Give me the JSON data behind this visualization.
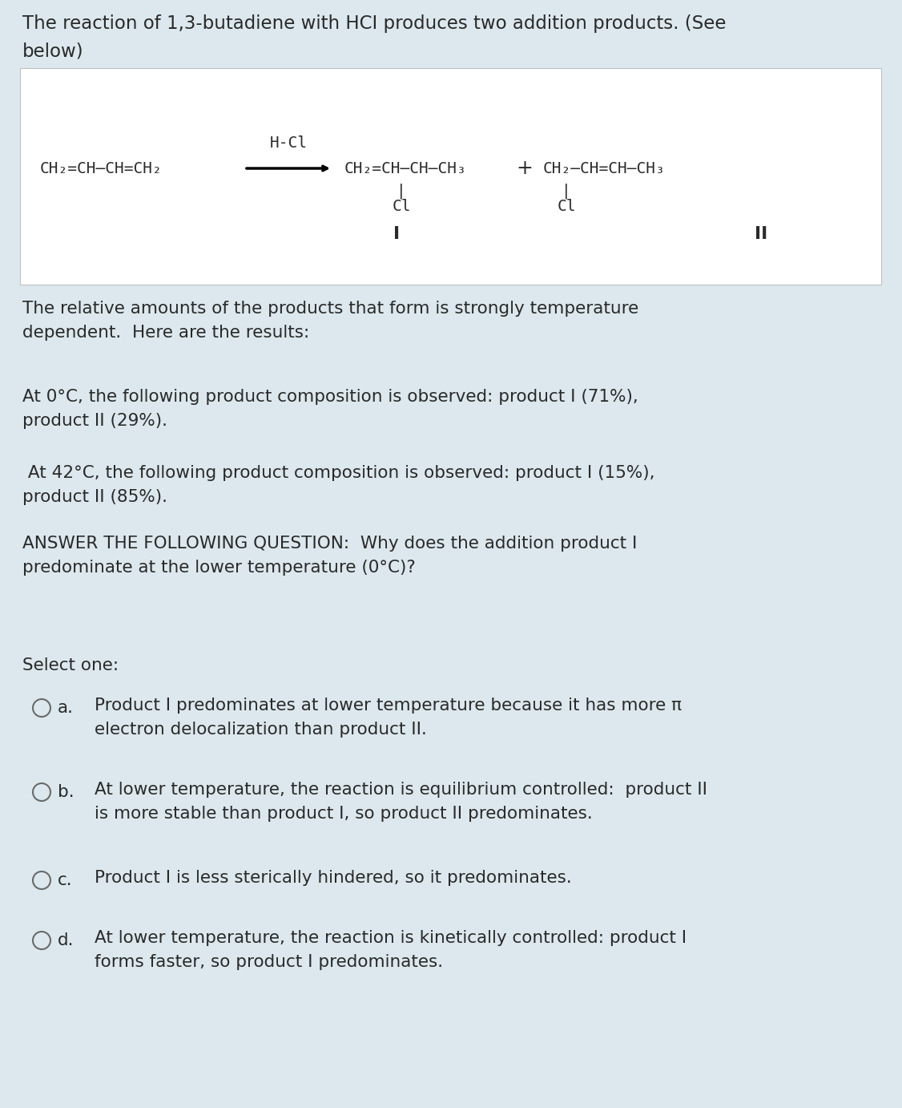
{
  "background_color": "#dce8ed",
  "white_box_color": "#ffffff",
  "text_color": "#2a2a2a",
  "title_text": "The reaction of 1,3-butadiene with HCI produces two addition products. (See\nbelow)",
  "body_text1": "The relative amounts of the products that form is strongly temperature\ndependent.  Here are the results:",
  "body_text2": "At 0°C, the following product composition is observed: product I (71%),\nproduct II (29%).",
  "body_text3": " At 42°C, the following product composition is observed: product I (15%),\nproduct II (85%).",
  "body_text4": "ANSWER THE FOLLOWING QUESTION:  Why does the addition product I\npredominate at the lower temperature (0°C)?",
  "select_text": "Select one:",
  "option_a_label": "a.",
  "option_a_text": "Product I predominates at lower temperature because it has more π\nelectron delocalization than product II.",
  "option_b_label": "b.",
  "option_b_text": "At lower temperature, the reaction is equilibrium controlled:  product II\nis more stable than product I, so product II predominates.",
  "option_c_label": "c.",
  "option_c_text": "Product I is less sterically hindered, so it predominates.",
  "option_d_label": "d.",
  "option_d_text": "At lower temperature, the reaction is kinetically controlled: product I\nforms faster, so product I predominates.",
  "font_size_title": 16.5,
  "font_size_body": 15.5,
  "font_size_reaction": 14,
  "font_size_options": 15.5,
  "fig_width": 11.26,
  "fig_height": 13.82,
  "dpi": 100
}
